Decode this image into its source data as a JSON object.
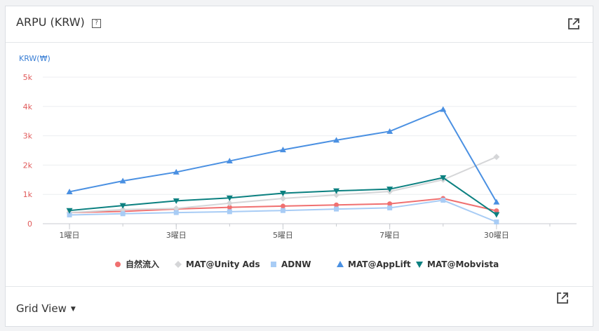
{
  "header": {
    "title": "ARPU (KRW)",
    "help": "?"
  },
  "footer": {
    "view_label": "Grid View"
  },
  "colors": {
    "natural": "#f07070",
    "unity": "#d5d6d8",
    "adnw": "#a8ccf5",
    "applift": "#4a90e2",
    "mobvista": "#0b8080"
  },
  "chart_data": {
    "type": "line",
    "ylabel": "KRW(₩)",
    "ylim": [
      0,
      5000
    ],
    "yticks": [
      0,
      1000,
      2000,
      3000,
      4000,
      5000
    ],
    "yticklabels": [
      "0",
      "1k",
      "2k",
      "3k",
      "4k",
      "5k"
    ],
    "x": [
      1,
      2,
      3,
      4,
      5,
      6,
      7,
      8,
      9
    ],
    "xticklabels": [
      {
        "pos": 1,
        "label": "1曜日"
      },
      {
        "pos": 3,
        "label": "3曜日"
      },
      {
        "pos": 5,
        "label": "5曜日"
      },
      {
        "pos": 7,
        "label": "7曜日"
      },
      {
        "pos": 9,
        "label": "30曜日"
      }
    ],
    "xlim": [
      0.5,
      10.5
    ],
    "grid": true,
    "legend": "bottom",
    "series": [
      {
        "name": "自然流入",
        "color": "#f07070",
        "marker": "circle",
        "values": [
          380,
          420,
          500,
          560,
          600,
          640,
          680,
          860,
          440
        ]
      },
      {
        "name": "MAT@Unity Ads",
        "color": "#d5d6d8",
        "marker": "diamond",
        "values": [
          380,
          480,
          520,
          700,
          860,
          980,
          1100,
          1500,
          2280
        ]
      },
      {
        "name": "ADNW",
        "color": "#a8ccf5",
        "marker": "square",
        "values": [
          300,
          340,
          380,
          410,
          450,
          500,
          540,
          800,
          60
        ]
      },
      {
        "name": "MAT@AppLift",
        "color": "#4a90e2",
        "marker": "triangle-up",
        "values": [
          1090,
          1460,
          1760,
          2140,
          2520,
          2850,
          3150,
          3900,
          740
        ]
      },
      {
        "name": "MAT@Mobvista",
        "color": "#0b8080",
        "marker": "triangle-down",
        "values": [
          450,
          620,
          780,
          880,
          1040,
          1120,
          1180,
          1570,
          310
        ]
      }
    ]
  }
}
